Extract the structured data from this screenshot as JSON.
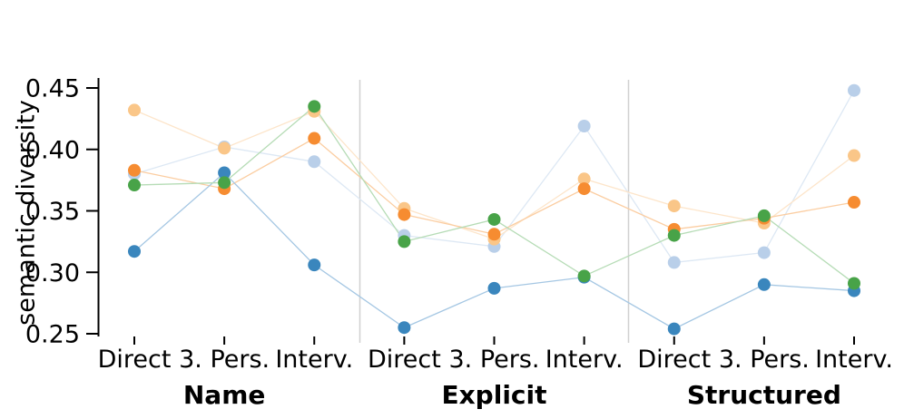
{
  "figure": {
    "background": "#ffffff",
    "axis_color": "#000000",
    "separator_color": "#d0d0d0"
  },
  "chart_data": {
    "type": "line",
    "title": "",
    "xlabel": "",
    "ylabel": "semantic diversity",
    "ylim": [
      0.25,
      0.45
    ],
    "yticks": [
      "0.45",
      "0.40",
      "0.35",
      "0.30",
      "0.25"
    ],
    "ytick_values": [
      0.45,
      0.4,
      0.35,
      0.3,
      0.25
    ],
    "grid": "off",
    "legend": "none",
    "groups": [
      {
        "label": "Name"
      },
      {
        "label": "Explicit"
      },
      {
        "label": "Structured"
      }
    ],
    "categories": [
      "Direct",
      "3. Pers.",
      "Interv.",
      "Direct",
      "3. Pers.",
      "Interv.",
      "Direct",
      "3. Pers.",
      "Interv."
    ],
    "series": [
      {
        "name": "pale-blue",
        "dot_color": "#b9cfe9",
        "line_color": "#dde8f4",
        "values": [
          0.38,
          0.402,
          0.39,
          0.33,
          0.321,
          0.419,
          0.308,
          0.316,
          0.448
        ]
      },
      {
        "name": "pale-orange",
        "dot_color": "#fac688",
        "line_color": "#fde5ca",
        "values": [
          0.432,
          0.401,
          0.431,
          0.352,
          0.327,
          0.376,
          0.354,
          0.34,
          0.395
        ]
      },
      {
        "name": "solid-orange",
        "dot_color": "#f68c31",
        "line_color": "#fbcda1",
        "values": [
          0.383,
          0.368,
          0.409,
          0.347,
          0.331,
          0.368,
          0.335,
          0.344,
          0.357
        ]
      },
      {
        "name": "solid-blue",
        "dot_color": "#3a86bd",
        "line_color": "#a5c7e3",
        "values": [
          0.317,
          0.381,
          0.306,
          0.255,
          0.287,
          0.296,
          0.254,
          0.29,
          0.285
        ]
      },
      {
        "name": "green",
        "dot_color": "#48a348",
        "line_color": "#b6dcb6",
        "values": [
          0.371,
          0.373,
          0.435,
          0.325,
          0.343,
          0.297,
          0.33,
          0.346,
          0.291
        ]
      }
    ]
  }
}
